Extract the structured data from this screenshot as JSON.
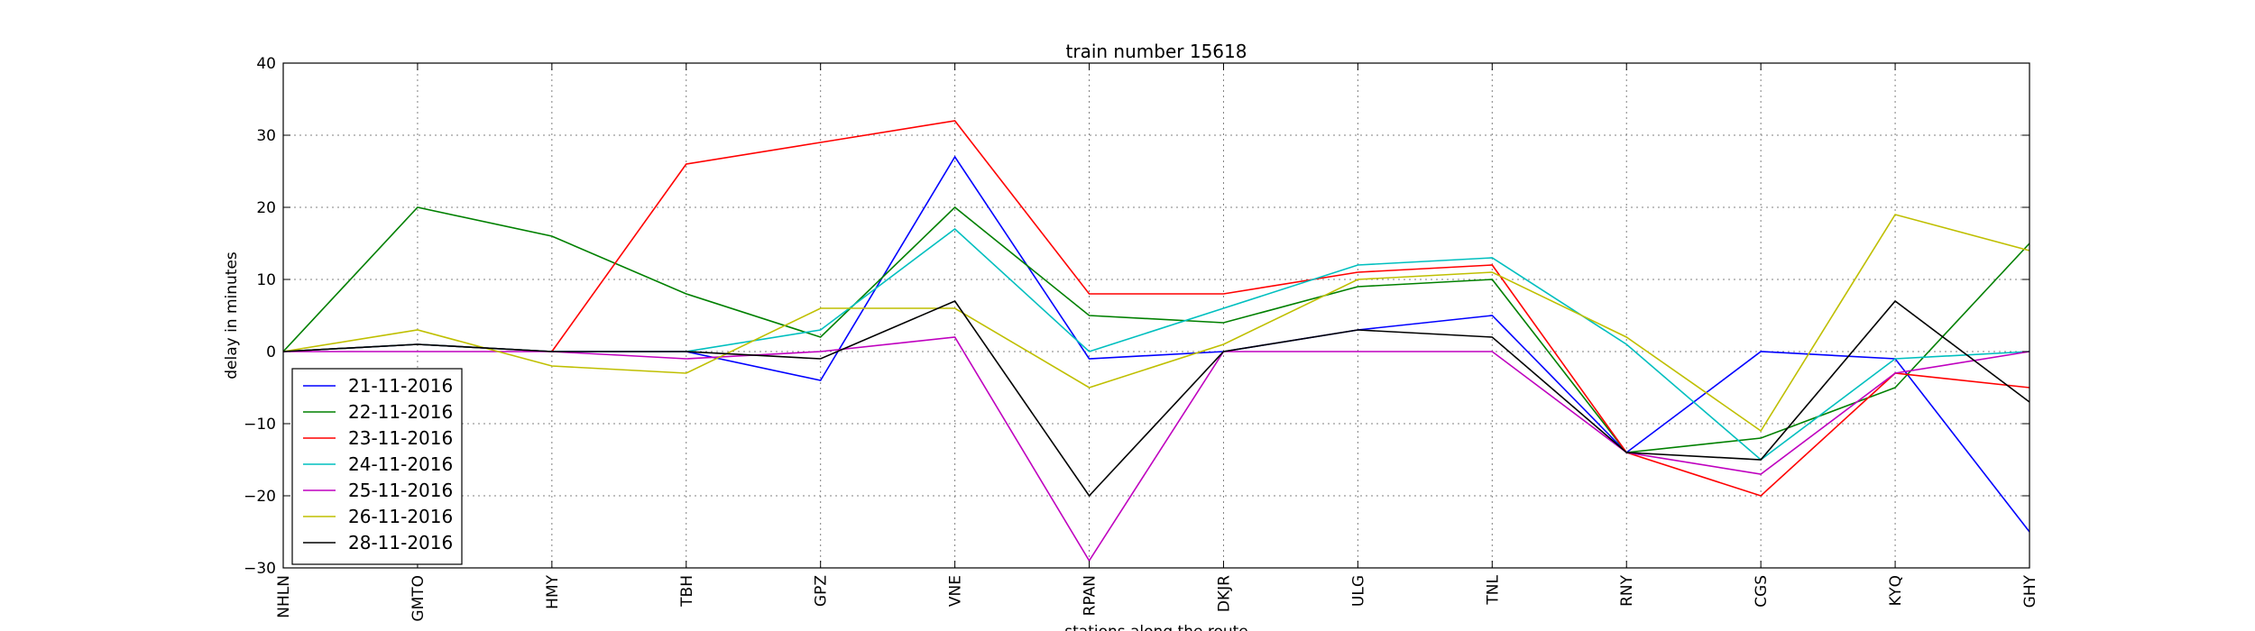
{
  "chart_data": {
    "type": "line",
    "title": "train number 15618",
    "xlabel": "stations along the route",
    "ylabel": "delay in minutes",
    "categories": [
      "NHLN",
      "GMTO",
      "HMY",
      "TBH",
      "GPZ",
      "VNE",
      "RPAN",
      "DKJR",
      "ULG",
      "TNL",
      "RNY",
      "CGS",
      "KYQ",
      "GHY"
    ],
    "ylim": [
      -30,
      40
    ],
    "yticks": [
      "40",
      "30",
      "20",
      "10",
      "0",
      "−10",
      "−20",
      "−30"
    ],
    "ytick_values": [
      40,
      30,
      20,
      10,
      0,
      -10,
      -20,
      -30
    ],
    "grid": true,
    "legend_position": "lower-left",
    "series": [
      {
        "name": "21-11-2016",
        "color": "#0000ff",
        "values": [
          0,
          1,
          0,
          0,
          -4,
          27,
          -1,
          0,
          3,
          5,
          -14,
          0,
          -1,
          -25
        ]
      },
      {
        "name": "22-11-2016",
        "color": "#008000",
        "values": [
          0,
          20,
          16,
          8,
          2,
          20,
          5,
          4,
          9,
          10,
          -14,
          -12,
          -5,
          15
        ]
      },
      {
        "name": "23-11-2016",
        "color": "#ff0000",
        "values": [
          0,
          1,
          0,
          26,
          29,
          32,
          8,
          8,
          11,
          12,
          -14,
          -20,
          -3,
          -5
        ]
      },
      {
        "name": "24-11-2016",
        "color": "#00bfbf",
        "values": [
          0,
          1,
          0,
          0,
          3,
          17,
          0,
          6,
          12,
          13,
          1,
          -15,
          -1,
          0
        ]
      },
      {
        "name": "25-11-2016",
        "color": "#bf00bf",
        "values": [
          0,
          0,
          0,
          -1,
          0,
          2,
          -29,
          0,
          0,
          0,
          -14,
          -17,
          -3,
          0
        ]
      },
      {
        "name": "26-11-2016",
        "color": "#bfbf00",
        "values": [
          0,
          3,
          -2,
          -3,
          6,
          6,
          -5,
          1,
          10,
          11,
          2,
          -11,
          19,
          14
        ]
      },
      {
        "name": "28-11-2016",
        "color": "#000000",
        "values": [
          0,
          1,
          0,
          0,
          -1,
          7,
          -20,
          0,
          3,
          2,
          -14,
          -15,
          7,
          -7
        ]
      }
    ]
  }
}
